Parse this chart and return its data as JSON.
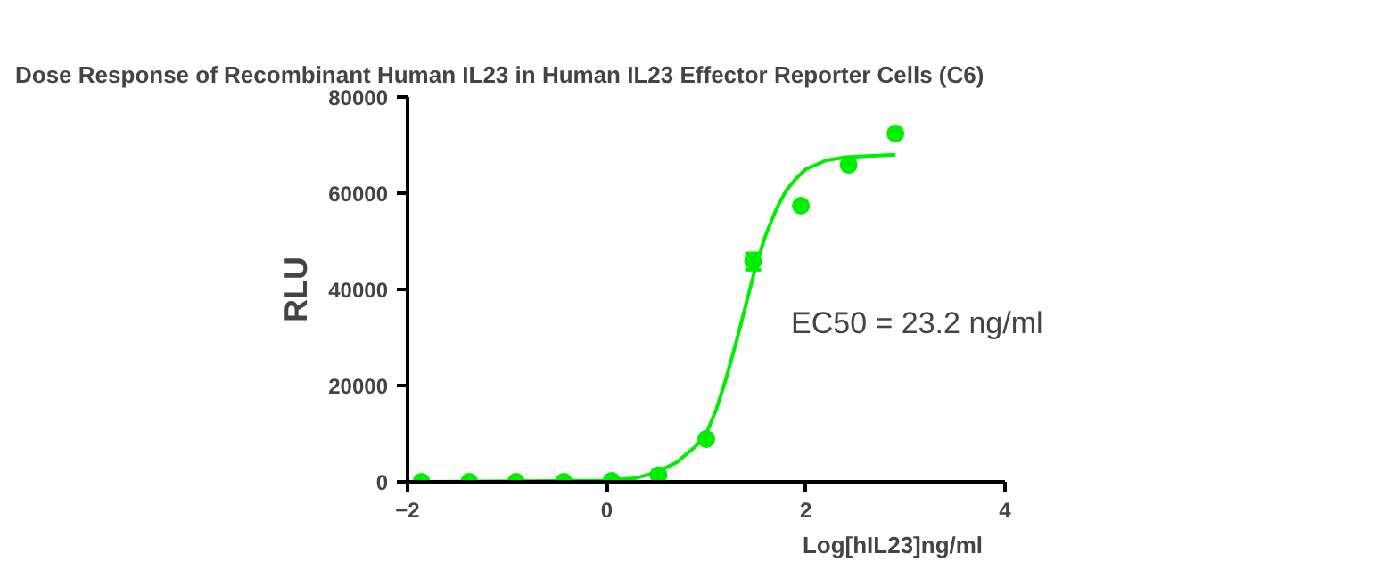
{
  "chart_data": {
    "type": "scatter",
    "title": "Dose Response of Recombinant Human IL23 in Human IL23 Effector Reporter Cells (C6)",
    "xlabel": "Log[hIL23]ng/ml",
    "ylabel": "RLU",
    "annotations": [
      "EC50 = 23.2 ng/ml"
    ],
    "x": [
      -1.86,
      -1.38,
      -0.91,
      -0.43,
      0.05,
      0.52,
      1.0,
      1.47,
      1.95,
      2.43,
      2.9
    ],
    "series": [
      {
        "color": "#00ee00",
        "marker": "circle",
        "values": [
          0,
          0,
          0,
          0,
          200,
          1400,
          8900,
          45900,
          57400,
          65900,
          72400
        ],
        "errors": [
          null,
          null,
          null,
          null,
          null,
          null,
          null,
          [
            44100,
            47500
          ],
          null,
          null,
          null
        ]
      },
      {
        "type": "line",
        "color": "#00ee00",
        "marker": "none",
        "x": [
          -1.86,
          0,
          0.3,
          0.5,
          0.7,
          0.9,
          1.0,
          1.1,
          1.2,
          1.3,
          1.4,
          1.5,
          1.6,
          1.7,
          1.8,
          1.9,
          2.0,
          2.2,
          2.4,
          2.9
        ],
        "values": [
          0,
          300,
          800,
          2000,
          4000,
          7500,
          10000,
          15000,
          21500,
          29000,
          37000,
          45000,
          51500,
          56500,
          60500,
          63000,
          65000,
          66800,
          67500,
          68000
        ]
      }
    ],
    "xlim": [
      -2,
      4
    ],
    "xticks": [
      -2,
      0,
      2,
      4
    ],
    "ylim": [
      0,
      80000
    ],
    "yticks": [
      0,
      20000,
      40000,
      60000,
      80000
    ],
    "grid": false
  }
}
